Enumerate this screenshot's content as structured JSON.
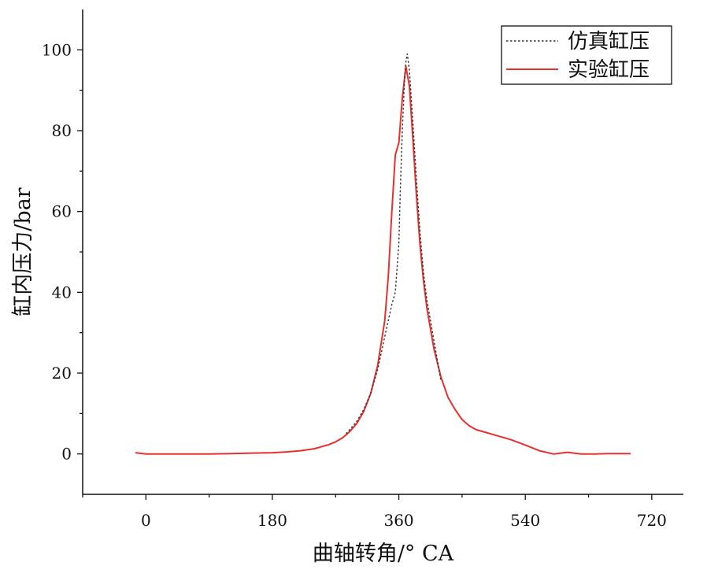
{
  "chart_data": {
    "type": "line",
    "xlabel": "曲轴转角/° CA",
    "ylabel": "缸内压力/bar",
    "xlim": [
      -90,
      765
    ],
    "ylim": [
      -10,
      110
    ],
    "xticks": [
      0,
      180,
      360,
      540,
      720
    ],
    "yticks": [
      0,
      20,
      40,
      60,
      80,
      100
    ],
    "grid": false,
    "legend_position": "top-right",
    "series": [
      {
        "name": "仿真缸压",
        "color": "#333333",
        "style": "dotted",
        "x": [
          285,
          290,
          300,
          310,
          320,
          330,
          340,
          350,
          355,
          360,
          362,
          365,
          368,
          370,
          372,
          375,
          380,
          385,
          390,
          395,
          400,
          410,
          420
        ],
        "y": [
          5,
          6,
          8,
          11,
          15,
          21,
          29,
          37,
          40,
          52,
          65,
          80,
          92,
          97,
          99,
          95,
          82,
          68,
          55,
          45,
          38,
          28,
          18
        ]
      },
      {
        "name": "实验缸压",
        "color": "#e8302f",
        "style": "solid",
        "x": [
          -15,
          0,
          30,
          60,
          90,
          120,
          150,
          180,
          200,
          220,
          240,
          260,
          270,
          280,
          290,
          300,
          310,
          320,
          330,
          340,
          345,
          350,
          355,
          360,
          365,
          370,
          375,
          380,
          385,
          390,
          395,
          400,
          410,
          420,
          430,
          440,
          450,
          460,
          470,
          480,
          500,
          520,
          540,
          560,
          580,
          600,
          620,
          640,
          660,
          690
        ],
        "y": [
          0.3,
          0.0,
          0.0,
          0.0,
          0.0,
          0.1,
          0.2,
          0.3,
          0.5,
          0.8,
          1.3,
          2.3,
          3.0,
          4.0,
          5.5,
          7.5,
          10.5,
          15,
          22,
          33,
          44,
          60,
          74,
          77,
          88,
          96,
          91,
          78,
          64,
          52,
          43,
          36,
          26,
          19,
          14,
          11,
          8.5,
          7,
          6,
          5.5,
          4.5,
          3.5,
          2.2,
          0.8,
          0.0,
          0.4,
          0.0,
          0.0,
          0.1,
          0.1
        ]
      }
    ]
  }
}
